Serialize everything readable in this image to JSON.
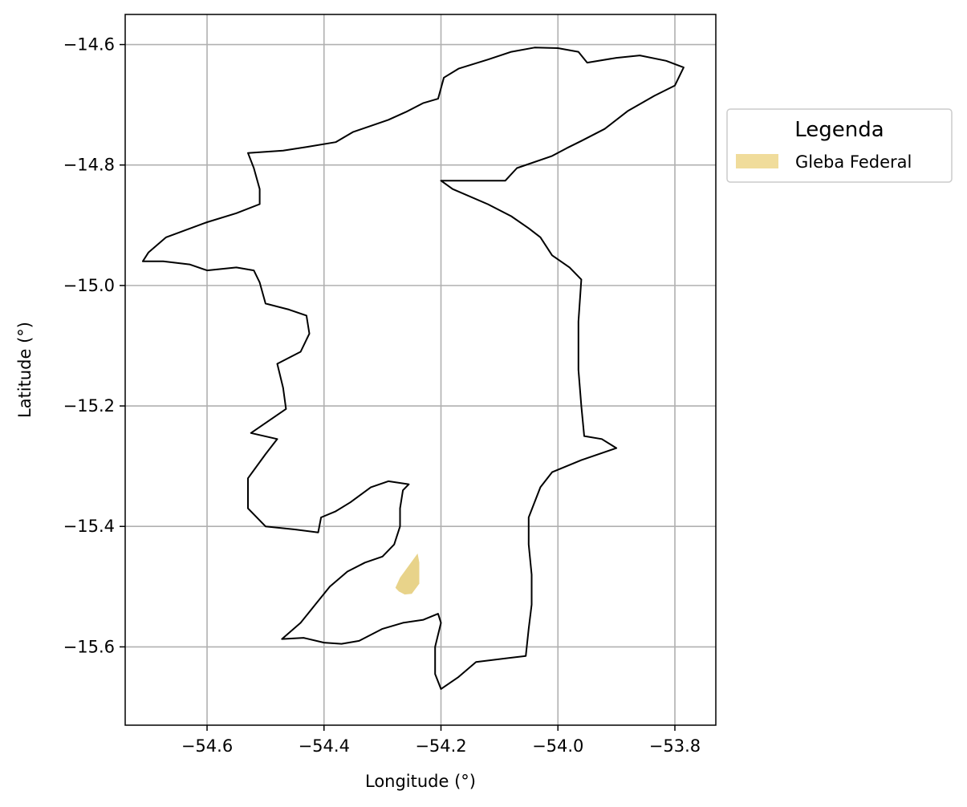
{
  "chart_data": {
    "type": "map",
    "xlabel": "Longitude (°)",
    "ylabel": "Latitude (°)",
    "xlim": [
      -54.74,
      -53.73
    ],
    "ylim": [
      -15.73,
      -14.55
    ],
    "x_ticks": [
      -54.6,
      -54.4,
      -54.2,
      -54.0,
      -53.8
    ],
    "x_tick_labels": [
      "−54.6",
      "−54.4",
      "−54.2",
      "−54.0",
      "−53.8"
    ],
    "y_ticks": [
      -14.6,
      -14.8,
      -15.0,
      -15.2,
      -15.4,
      -15.6
    ],
    "y_tick_labels": [
      "−14.6",
      "−14.8",
      "−15.0",
      "−15.2",
      "−15.4",
      "−15.6"
    ],
    "grid": true,
    "legend": {
      "title": "Legenda",
      "placement": "outside-right-top",
      "entries": [
        {
          "label": "Gleba Federal",
          "color": "#f0dc9b"
        }
      ]
    },
    "boundary": {
      "stroke": "#000000",
      "points": [
        [
          -54.53,
          -14.78
        ],
        [
          -54.47,
          -14.776
        ],
        [
          -54.43,
          -14.77
        ],
        [
          -54.38,
          -14.762
        ],
        [
          -54.35,
          -14.745
        ],
        [
          -54.32,
          -14.735
        ],
        [
          -54.29,
          -14.725
        ],
        [
          -54.26,
          -14.712
        ],
        [
          -54.23,
          -14.697
        ],
        [
          -54.205,
          -14.69
        ],
        [
          -54.195,
          -14.655
        ],
        [
          -54.17,
          -14.64
        ],
        [
          -54.12,
          -14.625
        ],
        [
          -54.08,
          -14.612
        ],
        [
          -54.04,
          -14.605
        ],
        [
          -54.0,
          -14.606
        ],
        [
          -53.965,
          -14.612
        ],
        [
          -53.95,
          -14.63
        ],
        [
          -53.9,
          -14.622
        ],
        [
          -53.86,
          -14.618
        ],
        [
          -53.815,
          -14.627
        ],
        [
          -53.785,
          -14.638
        ],
        [
          -53.8,
          -14.668
        ],
        [
          -53.835,
          -14.685
        ],
        [
          -53.88,
          -14.71
        ],
        [
          -53.92,
          -14.74
        ],
        [
          -53.96,
          -14.76
        ],
        [
          -53.985,
          -14.772
        ],
        [
          -54.01,
          -14.785
        ],
        [
          -54.07,
          -14.805
        ],
        [
          -54.09,
          -14.826
        ],
        [
          -54.14,
          -14.826
        ],
        [
          -54.2,
          -14.826
        ],
        [
          -54.18,
          -14.84
        ],
        [
          -54.12,
          -14.865
        ],
        [
          -54.08,
          -14.885
        ],
        [
          -54.05,
          -14.905
        ],
        [
          -54.03,
          -14.92
        ],
        [
          -54.01,
          -14.95
        ],
        [
          -53.98,
          -14.97
        ],
        [
          -53.96,
          -14.99
        ],
        [
          -53.965,
          -15.06
        ],
        [
          -53.965,
          -15.14
        ],
        [
          -53.96,
          -15.2
        ],
        [
          -53.955,
          -15.25
        ],
        [
          -53.925,
          -15.255
        ],
        [
          -53.9,
          -15.27
        ],
        [
          -53.96,
          -15.29
        ],
        [
          -54.01,
          -15.31
        ],
        [
          -54.03,
          -15.335
        ],
        [
          -54.05,
          -15.385
        ],
        [
          -54.05,
          -15.43
        ],
        [
          -54.045,
          -15.48
        ],
        [
          -54.045,
          -15.53
        ],
        [
          -54.05,
          -15.57
        ],
        [
          -54.055,
          -15.615
        ],
        [
          -54.14,
          -15.625
        ],
        [
          -54.17,
          -15.65
        ],
        [
          -54.2,
          -15.67
        ],
        [
          -54.21,
          -15.645
        ],
        [
          -54.21,
          -15.6
        ],
        [
          -54.2,
          -15.56
        ],
        [
          -54.205,
          -15.545
        ],
        [
          -54.23,
          -15.555
        ],
        [
          -54.265,
          -15.56
        ],
        [
          -54.3,
          -15.57
        ],
        [
          -54.34,
          -15.59
        ],
        [
          -54.37,
          -15.595
        ],
        [
          -54.4,
          -15.593
        ],
        [
          -54.435,
          -15.585
        ],
        [
          -54.472,
          -15.587
        ],
        [
          -54.44,
          -15.56
        ],
        [
          -54.415,
          -15.53
        ],
        [
          -54.39,
          -15.5
        ],
        [
          -54.36,
          -15.475
        ],
        [
          -54.33,
          -15.46
        ],
        [
          -54.3,
          -15.45
        ],
        [
          -54.28,
          -15.43
        ],
        [
          -54.27,
          -15.4
        ],
        [
          -54.27,
          -15.37
        ],
        [
          -54.265,
          -15.34
        ],
        [
          -54.255,
          -15.33
        ],
        [
          -54.29,
          -15.325
        ],
        [
          -54.32,
          -15.335
        ],
        [
          -54.355,
          -15.36
        ],
        [
          -54.38,
          -15.375
        ],
        [
          -54.405,
          -15.385
        ],
        [
          -54.41,
          -15.41
        ],
        [
          -54.45,
          -15.405
        ],
        [
          -54.5,
          -15.4
        ],
        [
          -54.53,
          -15.37
        ],
        [
          -54.53,
          -15.32
        ],
        [
          -54.5,
          -15.28
        ],
        [
          -54.48,
          -15.255
        ],
        [
          -54.525,
          -15.245
        ],
        [
          -54.465,
          -15.205
        ],
        [
          -54.47,
          -15.17
        ],
        [
          -54.48,
          -15.13
        ],
        [
          -54.44,
          -15.11
        ],
        [
          -54.425,
          -15.08
        ],
        [
          -54.43,
          -15.05
        ],
        [
          -54.46,
          -15.04
        ],
        [
          -54.5,
          -15.03
        ],
        [
          -54.51,
          -14.995
        ],
        [
          -54.52,
          -14.975
        ],
        [
          -54.55,
          -14.97
        ],
        [
          -54.6,
          -14.975
        ],
        [
          -54.63,
          -14.965
        ],
        [
          -54.675,
          -14.96
        ],
        [
          -54.71,
          -14.96
        ],
        [
          -54.7,
          -14.945
        ],
        [
          -54.67,
          -14.92
        ],
        [
          -54.6,
          -14.895
        ],
        [
          -54.55,
          -14.88
        ],
        [
          -54.51,
          -14.865
        ],
        [
          -54.51,
          -14.84
        ],
        [
          -54.52,
          -14.805
        ],
        [
          -54.53,
          -14.78
        ]
      ]
    },
    "gleba_federal": {
      "fill": "#e8d38a",
      "points": [
        [
          -54.24,
          -15.445
        ],
        [
          -54.237,
          -15.46
        ],
        [
          -54.237,
          -15.495
        ],
        [
          -54.25,
          -15.512
        ],
        [
          -54.262,
          -15.513
        ],
        [
          -54.272,
          -15.508
        ],
        [
          -54.278,
          -15.502
        ],
        [
          -54.27,
          -15.485
        ]
      ]
    }
  }
}
